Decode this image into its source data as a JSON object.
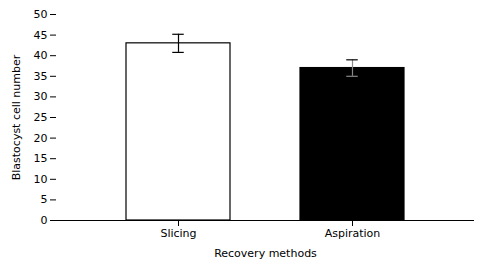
{
  "chart_data": {
    "type": "bar",
    "categories": [
      "Slicing",
      "Aspiration"
    ],
    "values": [
      43.0,
      37.0
    ],
    "errors": [
      2.2,
      2.0
    ],
    "colors": [
      "#ffffff",
      "#000000"
    ],
    "xlabel": "Recovery methods",
    "ylabel": "Blastocyst cell number",
    "ylim": [
      0,
      50
    ],
    "yticks": [
      0,
      5,
      10,
      15,
      20,
      25,
      30,
      35,
      40,
      45,
      50
    ],
    "grid": false
  }
}
